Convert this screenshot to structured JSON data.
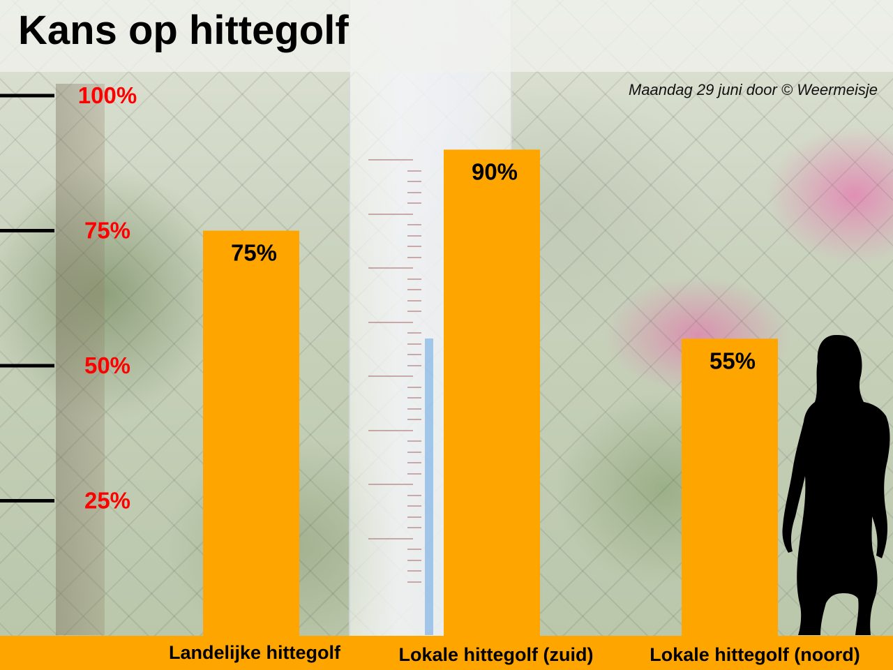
{
  "title": "Kans op hittegolf",
  "credit": "Maandag 29 juni door © Weermeisje",
  "colors": {
    "bar": "#ffa500",
    "tick_label": "#ff0000",
    "text": "#000000"
  },
  "chart_data": {
    "type": "bar",
    "title": "Kans op hittegolf",
    "categories": [
      "Landelijke hittegolf",
      "Lokale hittegolf (zuid)",
      "Lokale hittegolf (noord)"
    ],
    "values": [
      75,
      90,
      55
    ],
    "value_labels": [
      "75%",
      "90%",
      "55%"
    ],
    "ylim": [
      0,
      100
    ],
    "yticks": [
      25,
      50,
      75,
      100
    ],
    "ytick_labels": [
      "25%",
      "50%",
      "75%",
      "100%"
    ],
    "grid": false,
    "legend": "none"
  }
}
